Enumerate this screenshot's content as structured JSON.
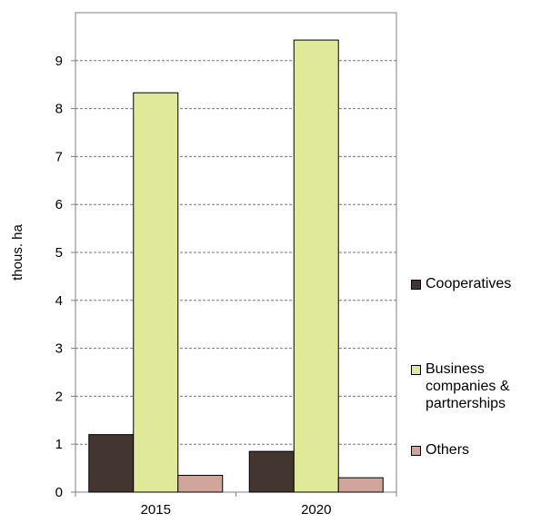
{
  "chart_data": {
    "type": "bar",
    "categories": [
      "2015",
      "2020"
    ],
    "series": [
      {
        "name": "Cooperatives",
        "values": [
          1.2,
          0.85
        ],
        "color": "#433530"
      },
      {
        "name": "Business companies & partnerships",
        "values": [
          8.33,
          9.43
        ],
        "color": "#e0e89a"
      },
      {
        "name": "Others",
        "values": [
          0.35,
          0.3
        ],
        "color": "#d1a59c"
      }
    ],
    "ylabel": "thous. ha",
    "xlabel": "",
    "ylim": [
      0,
      10
    ],
    "yticks": [
      0,
      1,
      2,
      3,
      4,
      5,
      6,
      7,
      8,
      9
    ],
    "grid": true,
    "legend_position": "right"
  }
}
